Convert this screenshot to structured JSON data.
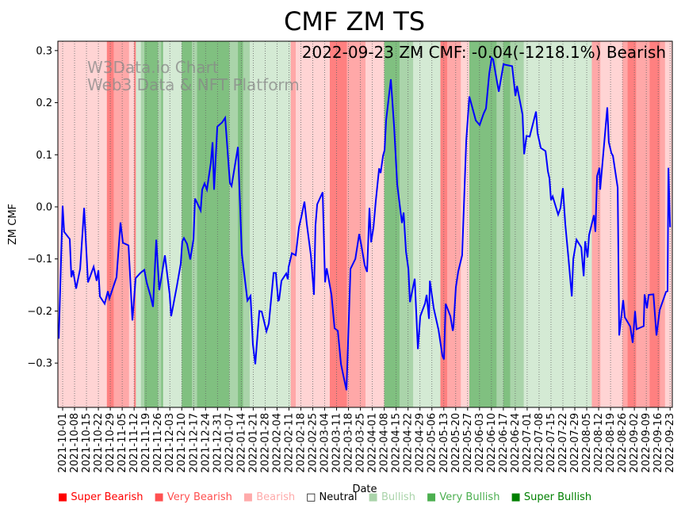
{
  "chart_data": {
    "type": "line",
    "title": "CMF ZM TS",
    "annotation": "2022-09-23 ZM CMF: -0.04(-1218.1%) Bearish",
    "watermark": [
      "W3Data.io Chart",
      "Web3 Data & NFT Platform"
    ],
    "xlabel": "Date",
    "ylabel": "ZM CMF",
    "start_date": "2021-10-01",
    "xlim_days": [
      -2.8,
      358.3
    ],
    "ylim": [
      -0.385,
      0.318
    ],
    "yticks": [
      -0.3,
      -0.2,
      -0.1,
      0.0,
      0.1,
      0.2,
      0.3
    ],
    "ytick_labels": [
      "−0.3",
      "−0.2",
      "−0.1",
      "0.0",
      "0.1",
      "0.2",
      "0.3"
    ],
    "xtick_labels": [
      "2021-10-01",
      "2021-10-08",
      "2021-10-15",
      "2021-10-22",
      "2021-10-29",
      "2021-11-05",
      "2021-11-12",
      "2021-11-19",
      "2021-11-26",
      "2021-12-03",
      "2021-12-10",
      "2021-12-17",
      "2021-12-24",
      "2021-12-31",
      "2022-01-07",
      "2022-01-14",
      "2022-01-21",
      "2022-01-28",
      "2022-02-04",
      "2022-02-11",
      "2022-02-18",
      "2022-02-25",
      "2022-03-04",
      "2022-03-11",
      "2022-03-18",
      "2022-03-25",
      "2022-04-01",
      "2022-04-08",
      "2022-04-15",
      "2022-04-22",
      "2022-04-29",
      "2022-05-06",
      "2022-05-13",
      "2022-05-20",
      "2022-05-27",
      "2022-06-03",
      "2022-06-10",
      "2022-06-17",
      "2022-06-24",
      "2022-07-01",
      "2022-07-08",
      "2022-07-15",
      "2022-07-22",
      "2022-07-29",
      "2022-08-05",
      "2022-08-12",
      "2022-08-19",
      "2022-08-26",
      "2022-09-02",
      "2022-09-09",
      "2022-09-16",
      "2022-09-23"
    ],
    "xtick_step_days": 7,
    "grid": "vertical dotted",
    "line_color": "#0000ff",
    "series": [
      {
        "name": "ZM CMF",
        "points": [
          [
            -2.3,
            -0.253
          ],
          [
            0,
            0.002
          ],
          [
            0.9,
            -0.048
          ],
          [
            4.2,
            -0.062
          ],
          [
            5.1,
            -0.135
          ],
          [
            6.1,
            -0.122
          ],
          [
            7.9,
            -0.157
          ],
          [
            10.3,
            -0.119
          ],
          [
            12.6,
            -0.002
          ],
          [
            14.9,
            -0.145
          ],
          [
            18.2,
            -0.115
          ],
          [
            20,
            -0.142
          ],
          [
            21,
            -0.122
          ],
          [
            21.9,
            -0.172
          ],
          [
            24.7,
            -0.186
          ],
          [
            26.6,
            -0.162
          ],
          [
            27.5,
            -0.176
          ],
          [
            31.7,
            -0.135
          ],
          [
            34,
            -0.03
          ],
          [
            35.4,
            -0.069
          ],
          [
            38.7,
            -0.074
          ],
          [
            41,
            -0.218
          ],
          [
            42.9,
            -0.137
          ],
          [
            45.7,
            -0.127
          ],
          [
            48,
            -0.121
          ],
          [
            49.4,
            -0.145
          ],
          [
            51.7,
            -0.172
          ],
          [
            53.1,
            -0.192
          ],
          [
            55,
            -0.063
          ],
          [
            56.8,
            -0.16
          ],
          [
            60.1,
            -0.093
          ],
          [
            62.9,
            -0.168
          ],
          [
            63.8,
            -0.21
          ],
          [
            67.1,
            -0.153
          ],
          [
            69.4,
            -0.109
          ],
          [
            70.3,
            -0.066
          ],
          [
            71.3,
            -0.06
          ],
          [
            73.1,
            -0.071
          ],
          [
            75,
            -0.101
          ],
          [
            76.9,
            -0.062
          ],
          [
            77.8,
            0.016
          ],
          [
            81.1,
            -0.007
          ],
          [
            82,
            0.033
          ],
          [
            83.4,
            0.045
          ],
          [
            84.8,
            0.033
          ],
          [
            87.1,
            0.084
          ],
          [
            88.1,
            0.124
          ],
          [
            89,
            0.033
          ],
          [
            90.9,
            0.154
          ],
          [
            93.7,
            0.162
          ],
          [
            95.5,
            0.171
          ],
          [
            98.3,
            0.046
          ],
          [
            99.3,
            0.04
          ],
          [
            103,
            0.115
          ],
          [
            105.3,
            -0.089
          ],
          [
            108.6,
            -0.18
          ],
          [
            110.4,
            -0.171
          ],
          [
            111.8,
            -0.264
          ],
          [
            113.2,
            -0.302
          ],
          [
            115.6,
            -0.2
          ],
          [
            117,
            -0.201
          ],
          [
            119.8,
            -0.239
          ],
          [
            121.2,
            -0.224
          ],
          [
            124,
            -0.127
          ],
          [
            125.3,
            -0.127
          ],
          [
            126.7,
            -0.18
          ],
          [
            127.2,
            -0.179
          ],
          [
            128.6,
            -0.142
          ],
          [
            130,
            -0.135
          ],
          [
            131.4,
            -0.128
          ],
          [
            132.3,
            -0.139
          ],
          [
            132.8,
            -0.116
          ],
          [
            134.7,
            -0.089
          ],
          [
            137,
            -0.093
          ],
          [
            138.9,
            -0.039
          ],
          [
            140.3,
            -0.019
          ],
          [
            142.1,
            0.01
          ],
          [
            143.5,
            -0.033
          ],
          [
            145.9,
            -0.093
          ],
          [
            147.7,
            -0.169
          ],
          [
            148.6,
            -0.036
          ],
          [
            149.6,
            0.005
          ],
          [
            152.8,
            0.028
          ],
          [
            154.2,
            -0.145
          ],
          [
            155.2,
            -0.118
          ],
          [
            158,
            -0.169
          ],
          [
            159.8,
            -0.233
          ],
          [
            161.7,
            -0.238
          ],
          [
            163.6,
            -0.302
          ],
          [
            165,
            -0.324
          ],
          [
            166.8,
            -0.352
          ],
          [
            169.2,
            -0.119
          ],
          [
            172,
            -0.1
          ],
          [
            174.3,
            -0.052
          ],
          [
            175.7,
            -0.077
          ],
          [
            177.5,
            -0.112
          ],
          [
            178.9,
            -0.125
          ],
          [
            180.3,
            -0.002
          ],
          [
            181.3,
            -0.068
          ],
          [
            182.7,
            -0.039
          ],
          [
            184.1,
            0.013
          ],
          [
            186,
            0.074
          ],
          [
            186.9,
            0.065
          ],
          [
            188.3,
            0.098
          ],
          [
            189.2,
            0.109
          ],
          [
            190.1,
            0.166
          ],
          [
            192.9,
            0.245
          ],
          [
            194.8,
            0.154
          ],
          [
            196.6,
            0.043
          ],
          [
            199.4,
            -0.031
          ],
          [
            200.4,
            -0.011
          ],
          [
            201.8,
            -0.086
          ],
          [
            203.2,
            -0.119
          ],
          [
            204.1,
            -0.183
          ],
          [
            206.9,
            -0.138
          ],
          [
            208.8,
            -0.273
          ],
          [
            210.2,
            -0.21
          ],
          [
            213,
            -0.185
          ],
          [
            213.9,
            -0.169
          ],
          [
            215.3,
            -0.215
          ],
          [
            215.8,
            -0.142
          ],
          [
            218.1,
            -0.195
          ],
          [
            220.9,
            -0.236
          ],
          [
            223.2,
            -0.286
          ],
          [
            224.1,
            -0.293
          ],
          [
            225.1,
            -0.186
          ],
          [
            227.9,
            -0.21
          ],
          [
            229.3,
            -0.238
          ],
          [
            229.7,
            -0.23
          ],
          [
            231.1,
            -0.154
          ],
          [
            232.5,
            -0.124
          ],
          [
            234.8,
            -0.093
          ],
          [
            237.2,
            0.128
          ],
          [
            239,
            0.212
          ],
          [
            242.8,
            0.166
          ],
          [
            245.1,
            0.157
          ],
          [
            247.4,
            0.179
          ],
          [
            248.8,
            0.189
          ],
          [
            250.7,
            0.256
          ],
          [
            252.1,
            0.286
          ],
          [
            253,
            0.283
          ],
          [
            256.3,
            0.221
          ],
          [
            259.1,
            0.274
          ],
          [
            260,
            0.273
          ],
          [
            264.2,
            0.27
          ],
          [
            266.1,
            0.213
          ],
          [
            267,
            0.232
          ],
          [
            270.3,
            0.177
          ],
          [
            271.2,
            0.101
          ],
          [
            272.6,
            0.136
          ],
          [
            274.5,
            0.135
          ],
          [
            278.2,
            0.183
          ],
          [
            279.1,
            0.142
          ],
          [
            281,
            0.113
          ],
          [
            283.8,
            0.107
          ],
          [
            285.2,
            0.068
          ],
          [
            286.1,
            0.055
          ],
          [
            287,
            0.013
          ],
          [
            288,
            0.02
          ],
          [
            291.2,
            -0.015
          ],
          [
            292.6,
            -0.002
          ],
          [
            294,
            0.036
          ],
          [
            295.4,
            -0.033
          ],
          [
            297.3,
            -0.1
          ],
          [
            299.2,
            -0.172
          ],
          [
            300.1,
            -0.1
          ],
          [
            302,
            -0.063
          ],
          [
            304.8,
            -0.078
          ],
          [
            306.2,
            -0.133
          ],
          [
            307.1,
            -0.066
          ],
          [
            308.5,
            -0.097
          ],
          [
            309.4,
            -0.054
          ],
          [
            312.2,
            -0.016
          ],
          [
            313.1,
            -0.048
          ],
          [
            314.1,
            0.059
          ],
          [
            315.5,
            0.075
          ],
          [
            315.9,
            0.033
          ],
          [
            320.1,
            0.191
          ],
          [
            321,
            0.124
          ],
          [
            322.5,
            0.103
          ],
          [
            323.4,
            0.098
          ],
          [
            326.2,
            0.037
          ],
          [
            327.1,
            -0.247
          ],
          [
            329.4,
            -0.179
          ],
          [
            330.4,
            -0.212
          ],
          [
            333.6,
            -0.23
          ],
          [
            335,
            -0.261
          ],
          [
            336.4,
            -0.2
          ],
          [
            337.3,
            -0.235
          ],
          [
            341.5,
            -0.229
          ],
          [
            342,
            -0.168
          ],
          [
            343.4,
            -0.195
          ],
          [
            344.4,
            -0.169
          ],
          [
            347.2,
            -0.168
          ],
          [
            349,
            -0.247
          ],
          [
            350.9,
            -0.198
          ],
          [
            354.6,
            -0.163
          ],
          [
            355.5,
            -0.162
          ],
          [
            356,
            0.075
          ],
          [
            357,
            -0.039
          ]
        ]
      }
    ],
    "sentiment_bands": [
      [
        -3,
        26,
        "bearish"
      ],
      [
        26,
        30,
        "super_bearish"
      ],
      [
        30,
        39,
        "very_bearish"
      ],
      [
        39,
        42,
        "bearish"
      ],
      [
        42,
        43,
        "super_bearish"
      ],
      [
        43,
        46,
        "bullish"
      ],
      [
        46,
        48,
        "very_bullish"
      ],
      [
        48,
        56,
        "super_bullish"
      ],
      [
        56,
        58,
        "very_bullish"
      ],
      [
        58,
        59,
        "super_bullish"
      ],
      [
        59,
        70,
        "bullish"
      ],
      [
        70,
        76,
        "super_bullish"
      ],
      [
        76,
        79,
        "very_bullish"
      ],
      [
        79,
        98,
        "super_bullish"
      ],
      [
        98,
        103,
        "very_bullish"
      ],
      [
        103,
        106,
        "super_bullish"
      ],
      [
        106,
        110,
        "very_bullish"
      ],
      [
        110,
        134,
        "bullish"
      ],
      [
        134,
        137,
        "very_bearish"
      ],
      [
        137,
        157,
        "bearish"
      ],
      [
        157,
        167,
        "super_bearish"
      ],
      [
        167,
        178,
        "very_bearish"
      ],
      [
        178,
        189,
        "bearish"
      ],
      [
        189,
        198,
        "super_bullish"
      ],
      [
        198,
        206,
        "very_bullish"
      ],
      [
        206,
        222,
        "bullish"
      ],
      [
        222,
        226,
        "super_bearish"
      ],
      [
        226,
        234,
        "very_bearish"
      ],
      [
        234,
        239,
        "bearish"
      ],
      [
        239,
        255,
        "super_bullish"
      ],
      [
        255,
        259,
        "very_bullish"
      ],
      [
        259,
        263,
        "super_bullish"
      ],
      [
        263,
        271,
        "very_bullish"
      ],
      [
        271,
        311,
        "bullish"
      ],
      [
        311,
        316,
        "very_bearish"
      ],
      [
        316,
        329,
        "bearish"
      ],
      [
        329,
        332,
        "very_bearish"
      ],
      [
        332,
        337,
        "super_bearish"
      ],
      [
        337,
        345,
        "very_bearish"
      ],
      [
        345,
        351,
        "super_bearish"
      ],
      [
        351,
        354,
        "very_bearish"
      ],
      [
        354,
        358.3,
        "bearish"
      ]
    ],
    "band_colors": {
      "super_bearish": "#ff8080",
      "very_bearish": "#ffa8a8",
      "bearish": "#ffd4d4",
      "bullish": "#d4ead4",
      "very_bullish": "#aad4aa",
      "super_bullish": "#80c080"
    },
    "legend": {
      "placement": "bottom",
      "items": [
        {
          "label": "Super Bearish",
          "color": "#ff0000"
        },
        {
          "label": "Very Bearish",
          "color": "#ff5050"
        },
        {
          "label": "Bearish",
          "color": "#ffaaaa"
        },
        {
          "label": "Neutral",
          "color": "#000000",
          "hollow": true
        },
        {
          "label": "Bullish",
          "color": "#aad4aa"
        },
        {
          "label": "Very Bullish",
          "color": "#4caf50"
        },
        {
          "label": "Super Bullish",
          "color": "#008000"
        }
      ]
    }
  }
}
